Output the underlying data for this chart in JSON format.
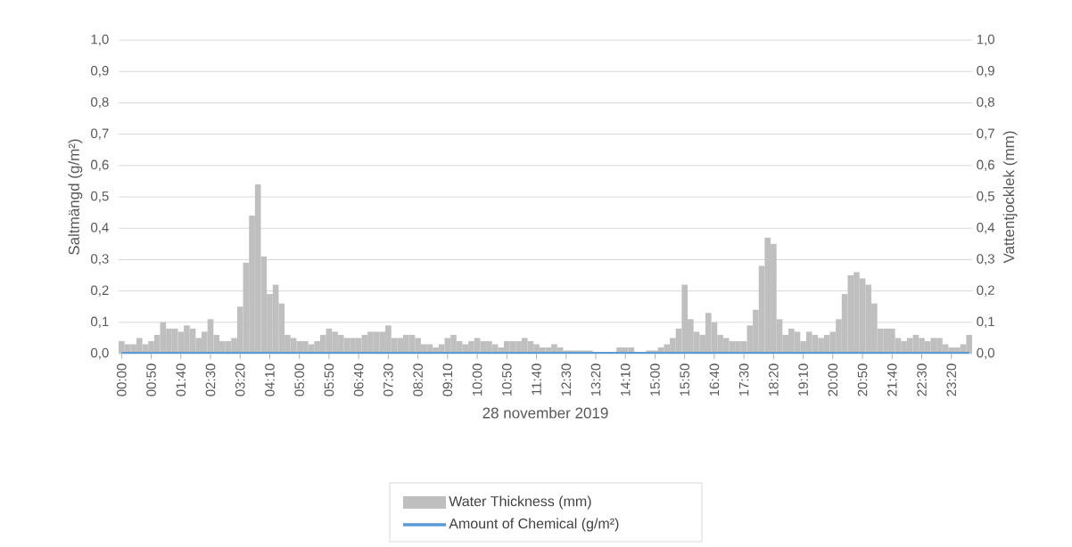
{
  "chart_data": {
    "type": "bar",
    "xlabel": "28 november 2019",
    "ylabel": "Saltmängd (g/m²)",
    "y2label": "Vattentjocklek (mm)",
    "categories": [
      "00:00",
      null,
      null,
      null,
      null,
      "00:50",
      null,
      null,
      null,
      null,
      "01:40",
      null,
      null,
      null,
      null,
      "02:30",
      null,
      null,
      null,
      null,
      "03:20",
      null,
      null,
      null,
      null,
      "04:10",
      null,
      null,
      null,
      null,
      "05:00",
      null,
      null,
      null,
      null,
      "05:50",
      null,
      null,
      null,
      null,
      "06:40",
      null,
      null,
      null,
      null,
      "07:30",
      null,
      null,
      null,
      null,
      "08:20",
      null,
      null,
      null,
      null,
      "09:10",
      null,
      null,
      null,
      null,
      "10:00",
      null,
      null,
      null,
      null,
      "10:50",
      null,
      null,
      null,
      null,
      "11:40",
      null,
      null,
      null,
      null,
      "12:30",
      null,
      null,
      null,
      null,
      "13:20",
      null,
      null,
      null,
      null,
      "14:10",
      null,
      null,
      null,
      null,
      "15:00",
      null,
      null,
      null,
      null,
      "15:50",
      null,
      null,
      null,
      null,
      "16:40",
      null,
      null,
      null,
      null,
      "17:30",
      null,
      null,
      null,
      null,
      "18:20",
      null,
      null,
      null,
      null,
      "19:10",
      null,
      null,
      null,
      null,
      "20:00",
      null,
      null,
      null,
      null,
      "20:50",
      null,
      null,
      null,
      null,
      "21:40",
      null,
      null,
      null,
      null,
      "22:30",
      null,
      null,
      null,
      null,
      "23:20",
      null,
      null,
      null
    ],
    "series": [
      {
        "name": "Water Thickness (mm)",
        "axis": "y2",
        "color": "#bfbfbf",
        "values": [
          0.04,
          0.03,
          0.03,
          0.05,
          0.03,
          0.04,
          0.06,
          0.1,
          0.08,
          0.08,
          0.07,
          0.09,
          0.08,
          0.05,
          0.07,
          0.11,
          0.06,
          0.04,
          0.04,
          0.05,
          0.15,
          0.29,
          0.44,
          0.54,
          0.31,
          0.19,
          0.22,
          0.16,
          0.06,
          0.05,
          0.04,
          0.04,
          0.03,
          0.04,
          0.06,
          0.08,
          0.07,
          0.06,
          0.05,
          0.05,
          0.05,
          0.06,
          0.07,
          0.07,
          0.07,
          0.09,
          0.05,
          0.05,
          0.06,
          0.06,
          0.05,
          0.03,
          0.03,
          0.02,
          0.03,
          0.05,
          0.06,
          0.04,
          0.03,
          0.04,
          0.05,
          0.04,
          0.04,
          0.03,
          0.02,
          0.04,
          0.04,
          0.04,
          0.05,
          0.04,
          0.03,
          0.02,
          0.02,
          0.03,
          0.02,
          0.01,
          0.01,
          0.01,
          0.01,
          0.01,
          0.0,
          0.0,
          0.0,
          0.0,
          0.02,
          0.02,
          0.02,
          0.0,
          0.0,
          0.01,
          0.01,
          0.02,
          0.03,
          0.05,
          0.08,
          0.22,
          0.11,
          0.07,
          0.06,
          0.13,
          0.1,
          0.06,
          0.05,
          0.04,
          0.04,
          0.04,
          0.09,
          0.14,
          0.28,
          0.37,
          0.35,
          0.11,
          0.06,
          0.08,
          0.07,
          0.04,
          0.07,
          0.06,
          0.05,
          0.06,
          0.07,
          0.11,
          0.19,
          0.25,
          0.26,
          0.24,
          0.22,
          0.16,
          0.08,
          0.08,
          0.08,
          0.05,
          0.04,
          0.05,
          0.06,
          0.05,
          0.04,
          0.05,
          0.05,
          0.03,
          0.02,
          0.02,
          0.03,
          0.06
        ]
      },
      {
        "name": "Amount of Chemical (g/m²)",
        "type": "line",
        "axis": "y",
        "color": "#5b9bd5",
        "values": [
          0,
          0,
          0,
          0,
          0,
          0,
          0,
          0,
          0,
          0,
          0,
          0,
          0,
          0,
          0,
          0,
          0,
          0,
          0,
          0,
          0,
          0,
          0,
          0,
          0,
          0,
          0,
          0,
          0,
          0,
          0,
          0,
          0,
          0,
          0,
          0,
          0,
          0,
          0,
          0,
          0,
          0,
          0,
          0,
          0,
          0,
          0,
          0,
          0,
          0,
          0,
          0,
          0,
          0,
          0,
          0,
          0,
          0,
          0,
          0,
          0,
          0,
          0,
          0,
          0,
          0,
          0,
          0,
          0,
          0,
          0,
          0,
          0,
          0,
          0,
          0,
          0,
          0,
          0,
          0,
          0,
          0,
          0,
          0,
          0,
          0,
          0,
          0,
          0,
          0,
          0,
          0,
          0,
          0,
          0,
          0,
          0,
          0,
          0,
          0,
          0,
          0,
          0,
          0,
          0,
          0,
          0,
          0,
          0,
          0,
          0,
          0,
          0,
          0,
          0,
          0,
          0,
          0,
          0,
          0,
          0,
          0,
          0,
          0,
          0,
          0,
          0,
          0,
          0,
          0,
          0,
          0,
          0,
          0,
          0,
          0,
          0,
          0,
          0,
          0,
          0,
          0,
          0,
          0
        ]
      }
    ],
    "ylim": [
      0,
      1
    ],
    "yticks": [
      {
        "value": 0,
        "label": "0,0"
      },
      {
        "value": 0.1,
        "label": "0,1"
      },
      {
        "value": 0.2,
        "label": "0,2"
      },
      {
        "value": 0.3,
        "label": "0,3"
      },
      {
        "value": 0.4,
        "label": "0,4"
      },
      {
        "value": 0.5,
        "label": "0,5"
      },
      {
        "value": 0.6,
        "label": "0,6"
      },
      {
        "value": 0.7,
        "label": "0,7"
      },
      {
        "value": 0.8,
        "label": "0,8"
      },
      {
        "value": 0.9,
        "label": "0,9"
      },
      {
        "value": 1,
        "label": "1,0"
      }
    ],
    "y2lim": [
      0,
      1
    ],
    "y2ticks": [
      {
        "value": 0,
        "label": "0,0"
      },
      {
        "value": 0.1,
        "label": "0,1"
      },
      {
        "value": 0.2,
        "label": "0,2"
      },
      {
        "value": 0.3,
        "label": "0,3"
      },
      {
        "value": 0.4,
        "label": "0,4"
      },
      {
        "value": 0.5,
        "label": "0,5"
      },
      {
        "value": 0.6,
        "label": "0,6"
      },
      {
        "value": 0.7,
        "label": "0,7"
      },
      {
        "value": 0.8,
        "label": "0,8"
      },
      {
        "value": 0.9,
        "label": "0,9"
      },
      {
        "value": 1,
        "label": "1,0"
      }
    ],
    "grid": "y",
    "legend": "bottom"
  }
}
